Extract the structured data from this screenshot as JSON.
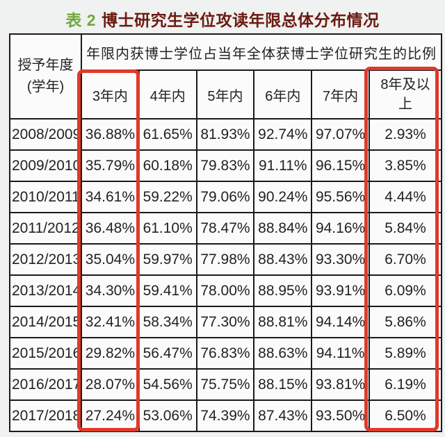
{
  "title": {
    "prefix": "表 2",
    "text": "博士研究生学位攻读年限总体分布情况"
  },
  "colors": {
    "title_prefix_green": "#6fa83c",
    "title_text_dark_red": "#6b1a10",
    "highlight_red": "#e0392a",
    "table_border_black": "#1a1a1a"
  },
  "chart_data": {
    "type": "table",
    "title": "表 2 博士研究生学位攻读年限总体分布情况",
    "corner_header_lines": [
      "授予年度",
      "(学年)"
    ],
    "span_header": "年限内获博士学位占当年全体获博士学位研究生的比例",
    "columns": [
      "3年内",
      "4年内",
      "5年内",
      "6年内",
      "7年内",
      "8年及以上"
    ],
    "rows": [
      [
        "2008/2009",
        "36.88%",
        "61.65%",
        "81.93%",
        "92.74%",
        "97.07%",
        "2.93%"
      ],
      [
        "2009/2010",
        "35.79%",
        "60.18%",
        "79.83%",
        "91.11%",
        "96.15%",
        "3.85%"
      ],
      [
        "2010/2011",
        "34.61%",
        "59.22%",
        "79.06%",
        "90.24%",
        "95.56%",
        "4.44%"
      ],
      [
        "2011/2012",
        "36.48%",
        "61.10%",
        "78.47%",
        "88.84%",
        "94.16%",
        "5.84%"
      ],
      [
        "2012/2013",
        "35.04%",
        "59.97%",
        "77.98%",
        "88.43%",
        "93.30%",
        "6.70%"
      ],
      [
        "2013/2014",
        "34.30%",
        "59.41%",
        "78.00%",
        "88.95%",
        "93.91%",
        "6.09%"
      ],
      [
        "2014/2015",
        "32.41%",
        "58.34%",
        "77.30%",
        "88.81%",
        "94.14%",
        "5.86%"
      ],
      [
        "2015/2016",
        "29.82%",
        "56.47%",
        "76.83%",
        "88.63%",
        "94.11%",
        "5.89%"
      ],
      [
        "2016/2017",
        "28.07%",
        "54.56%",
        "75.75%",
        "88.15%",
        "93.81%",
        "6.19%"
      ],
      [
        "2017/2018",
        "27.24%",
        "53.06%",
        "74.39%",
        "87.43%",
        "93.50%",
        "6.50%"
      ]
    ],
    "highlighted_columns": [
      "3年内",
      "8年及以上"
    ]
  }
}
